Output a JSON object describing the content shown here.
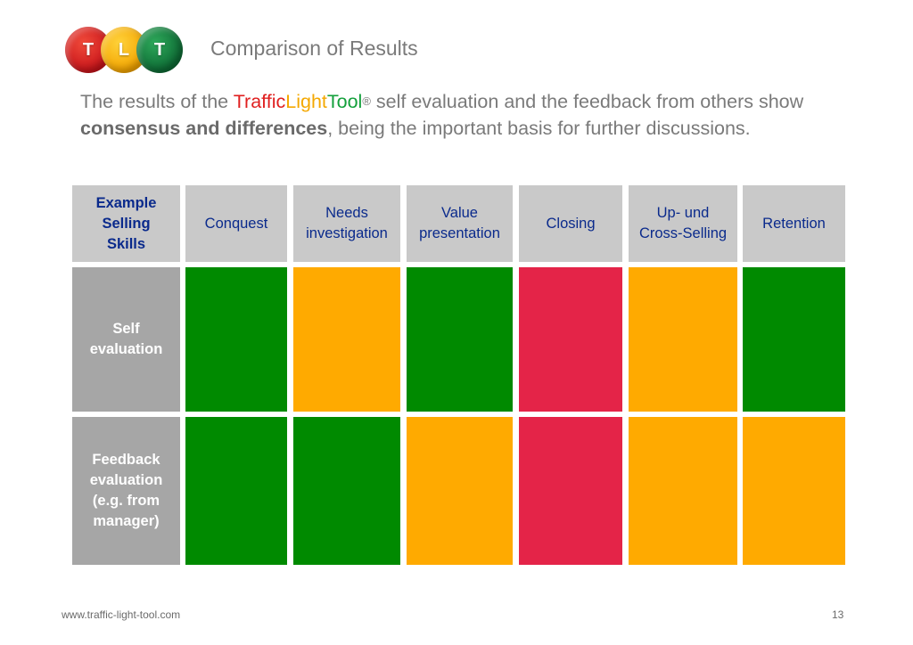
{
  "logo": {
    "letters": [
      "T",
      "L",
      "T"
    ]
  },
  "page_title": "Comparison of Results",
  "intro": {
    "p1": "The results of the ",
    "brand_traffic": "Traffic",
    "brand_light": "Light",
    "brand_tool": "Tool",
    "registered": "®",
    "p2": " self evaluation and the feedback from others show ",
    "bold": "consensus and differences",
    "p3": ", being the important basis for further discussions."
  },
  "table": {
    "corner_lines": [
      "Example",
      "Selling",
      "Skills"
    ],
    "columns": [
      {
        "lines": [
          "Conquest"
        ]
      },
      {
        "lines": [
          "Needs",
          "investigation"
        ]
      },
      {
        "lines": [
          "Value",
          "presentation"
        ]
      },
      {
        "lines": [
          "Closing"
        ]
      },
      {
        "lines": [
          "Up- und",
          "Cross-Selling"
        ]
      },
      {
        "lines": [
          "Retention"
        ]
      }
    ],
    "rows": [
      {
        "lines": [
          "Self",
          "evaluation"
        ],
        "status": [
          "green",
          "amber",
          "green",
          "red",
          "amber",
          "green"
        ]
      },
      {
        "lines": [
          "Feedback",
          "evaluation",
          "(e.g. from",
          "manager)"
        ],
        "status": [
          "green",
          "green",
          "amber",
          "red",
          "amber",
          "amber"
        ]
      }
    ]
  },
  "colors": {
    "green": "#008a00",
    "amber": "#ffaa00",
    "red": "#e42448"
  },
  "footer": {
    "url": "www.traffic-light-tool.com",
    "page_number": "13"
  }
}
